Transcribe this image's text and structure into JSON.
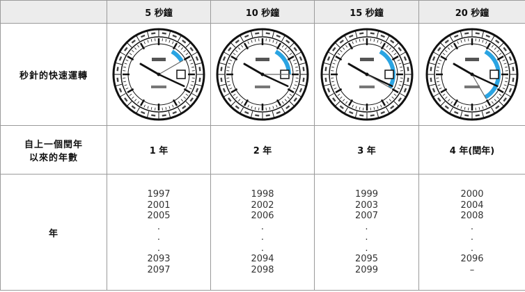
{
  "table": {
    "columns": [
      "5 秒鐘",
      "10 秒鐘",
      "15 秒鐘",
      "20 秒鐘"
    ],
    "rows": [
      {
        "label": "秒針的快速運轉"
      },
      {
        "label": [
          "自上一個閏年",
          "以來的年數"
        ],
        "cells": [
          "1 年",
          "2 年",
          "3 年",
          "4 年(閏年)"
        ]
      },
      {
        "label": "年",
        "cells": [
          [
            "1997",
            "2001",
            "2005",
            ".",
            ".",
            ".",
            "2093",
            "2097"
          ],
          [
            "1998",
            "2002",
            "2006",
            ".",
            ".",
            ".",
            "2094",
            "2098"
          ],
          [
            "1999",
            "2003",
            "2007",
            ".",
            ".",
            ".",
            "2095",
            "2099"
          ],
          [
            "2000",
            "2004",
            "2008",
            ".",
            ".",
            ".",
            "2096",
            "–"
          ]
        ]
      }
    ]
  }
}
